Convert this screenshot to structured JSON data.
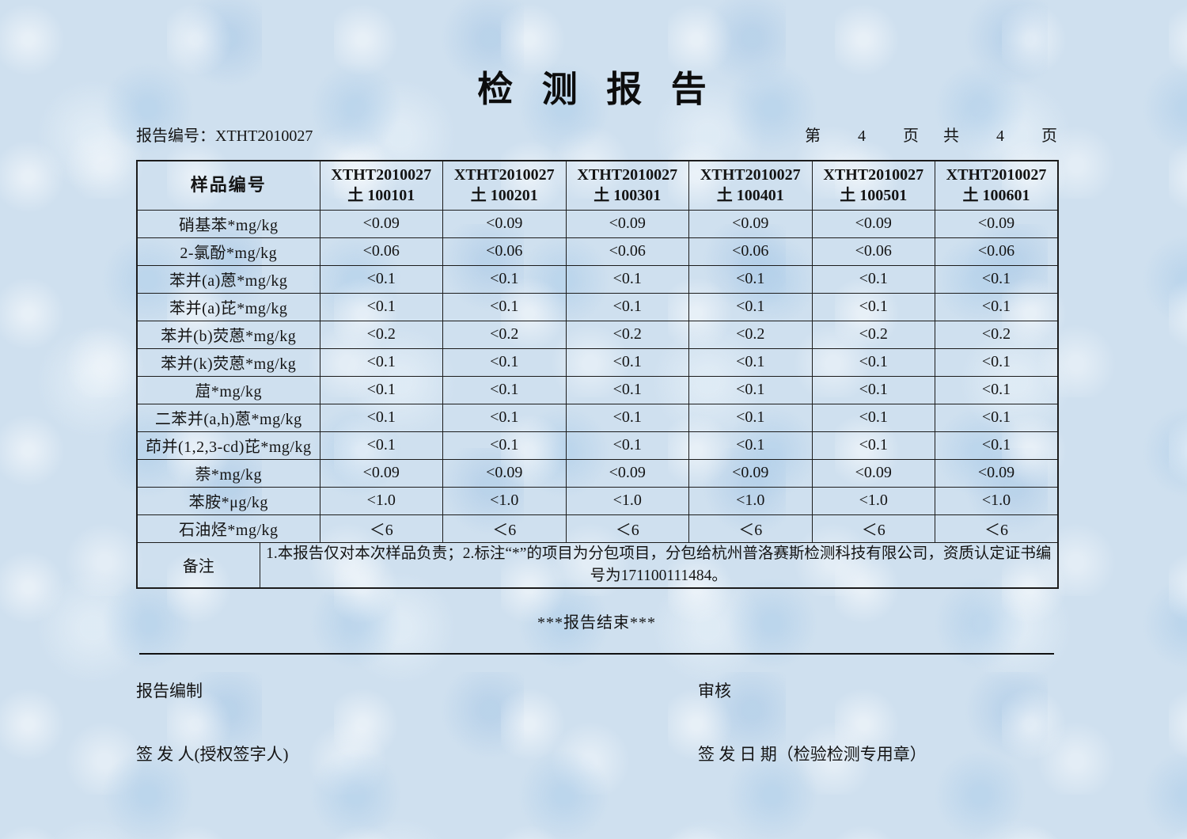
{
  "title": "检 测 报 告",
  "meta": {
    "report_no_label": "报告编号：",
    "report_no": "XTHT2010027",
    "pagination": {
      "label_di": "第",
      "current_page": "4",
      "label_ye1": "页",
      "label_gong": "共",
      "total_pages": "4",
      "label_ye2": "页"
    }
  },
  "table": {
    "header": {
      "first": "样品编号",
      "samples": [
        {
          "line1": "XTHT2010027",
          "line2": "土 100101"
        },
        {
          "line1": "XTHT2010027",
          "line2": "土 100201"
        },
        {
          "line1": "XTHT2010027",
          "line2": "土 100301"
        },
        {
          "line1": "XTHT2010027",
          "line2": "土 100401"
        },
        {
          "line1": "XTHT2010027",
          "line2": "土 100501"
        },
        {
          "line1": "XTHT2010027",
          "line2": "土 100601"
        }
      ]
    },
    "rows": [
      {
        "label": "硝基苯*mg/kg",
        "values": [
          "<0.09",
          "<0.09",
          "<0.09",
          "<0.09",
          "<0.09",
          "<0.09"
        ]
      },
      {
        "label": "2-氯酚*mg/kg",
        "values": [
          "<0.06",
          "<0.06",
          "<0.06",
          "<0.06",
          "<0.06",
          "<0.06"
        ]
      },
      {
        "label": "苯并(a)蒽*mg/kg",
        "values": [
          "<0.1",
          "<0.1",
          "<0.1",
          "<0.1",
          "<0.1",
          "<0.1"
        ]
      },
      {
        "label": "苯并(a)芘*mg/kg",
        "values": [
          "<0.1",
          "<0.1",
          "<0.1",
          "<0.1",
          "<0.1",
          "<0.1"
        ]
      },
      {
        "label": "苯并(b)荧蒽*mg/kg",
        "values": [
          "<0.2",
          "<0.2",
          "<0.2",
          "<0.2",
          "<0.2",
          "<0.2"
        ]
      },
      {
        "label": "苯并(k)荧蒽*mg/kg",
        "values": [
          "<0.1",
          "<0.1",
          "<0.1",
          "<0.1",
          "<0.1",
          "<0.1"
        ]
      },
      {
        "label": "䓛*mg/kg",
        "values": [
          "<0.1",
          "<0.1",
          "<0.1",
          "<0.1",
          "<0.1",
          "<0.1"
        ]
      },
      {
        "label": "二苯并(a,h)蒽*mg/kg",
        "values": [
          "<0.1",
          "<0.1",
          "<0.1",
          "<0.1",
          "<0.1",
          "<0.1"
        ]
      },
      {
        "label": "茚并(1,2,3-cd)芘*mg/kg",
        "values": [
          "<0.1",
          "<0.1",
          "<0.1",
          "<0.1",
          "<0.1",
          "<0.1"
        ]
      },
      {
        "label": "萘*mg/kg",
        "values": [
          "<0.09",
          "<0.09",
          "<0.09",
          "<0.09",
          "<0.09",
          "<0.09"
        ]
      },
      {
        "label": "苯胺*μg/kg",
        "values": [
          "<1.0",
          "<1.0",
          "<1.0",
          "<1.0",
          "<1.0",
          "<1.0"
        ]
      },
      {
        "label": "石油烃*mg/kg",
        "values": [
          "＜6",
          "＜6",
          "＜6",
          "＜6",
          "＜6",
          "＜6"
        ]
      }
    ],
    "remark": {
      "label": "备注",
      "text": "1.本报告仅对本次样品负责；2.标注“*”的项目为分包项目，分包给杭州普洛赛斯检测科技有限公司，资质认定证书编号为171100111484。"
    }
  },
  "footer": {
    "end_text": "***报告结束***",
    "prepared_label": "报告编制",
    "review_label": "审核",
    "issuer_label": "签 发 人(授权签字人)",
    "issue_date_label": "签 发 日 期（检验检测专用章）"
  }
}
